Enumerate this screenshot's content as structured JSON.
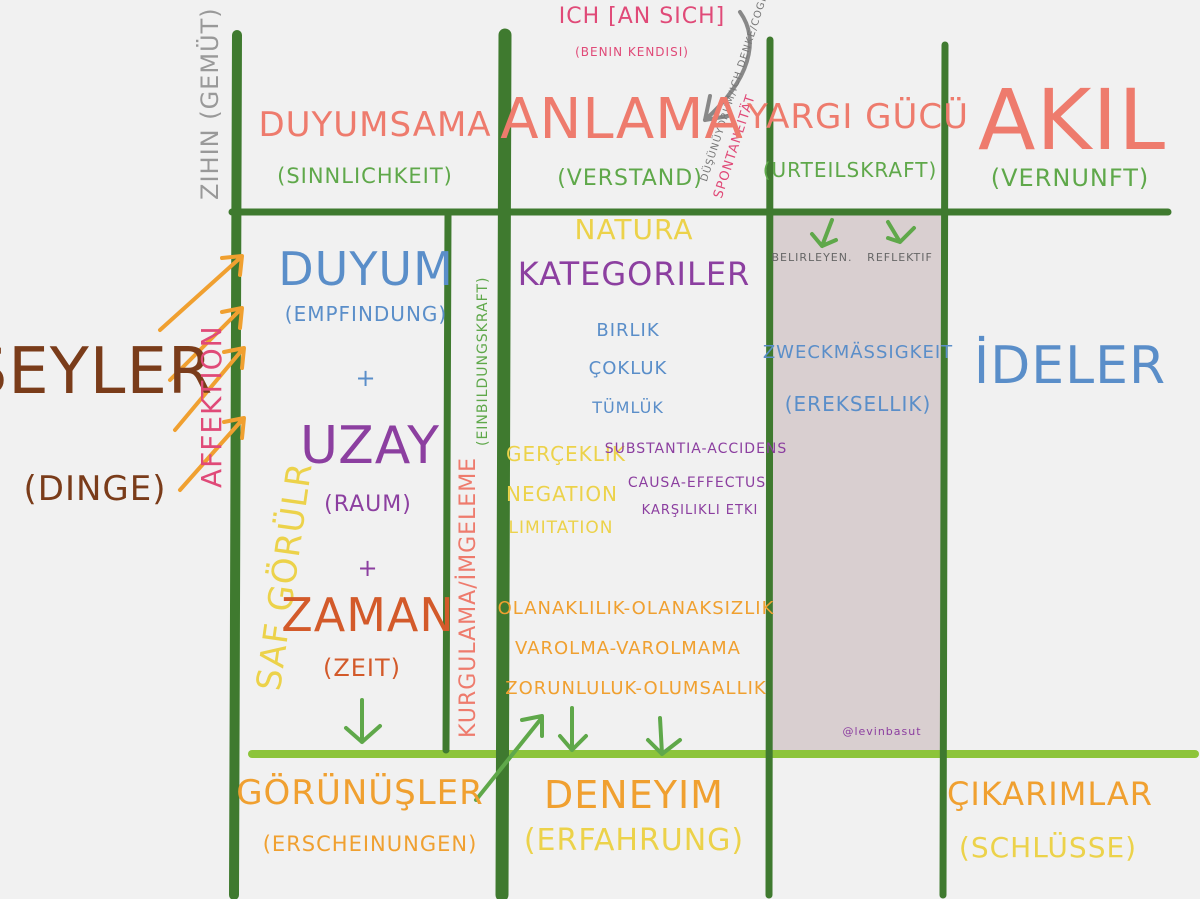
{
  "colors": {
    "dark_green": "#3f7a2f",
    "light_green": "#8cc43a",
    "salmon": "#ee7b6d",
    "green_text": "#5fa84a",
    "blue": "#5a8ec9",
    "purple": "#8c3fa0",
    "orange": "#f0a030",
    "yellow": "#ecd24a",
    "brown": "#7a3c1a",
    "pink": "#e04a78",
    "gray": "#777777",
    "shade": "#d9cfd0"
  },
  "top": {
    "ich": "ICH [AN SICH]",
    "benin_kendisi": "(Benin Kendisi)",
    "cogito_note": "Düşünüyorum/Ich denke/Cogito",
    "spontaneitat": "Spontaneität"
  },
  "faculties": {
    "duyumsama": "Duyumsama",
    "sinnlichkeit": "(Sinnlichkeit)",
    "anlama": "Anlama",
    "verstand": "(Verstand)",
    "yargi_gucu": "Yargı gücü",
    "urteilskraft": "(Urteilskraft)",
    "akil": "AKIL",
    "vernunft": "(Vernunft)"
  },
  "left": {
    "zihin": "Zihin (Gemüt)",
    "seyler": "ŞEYLER",
    "dinge": "(Dinge)",
    "affektion": "Affektion",
    "saf_gorular": "Saf Görülr"
  },
  "sense": {
    "duyum": "Duyum",
    "empfindung": "(Empfindung)",
    "plus1": "+",
    "uzay": "Uzay",
    "raum": "(Raum)",
    "plus2": "+",
    "zaman": "Zaman",
    "zeit": "(Zeit)"
  },
  "imagination": {
    "kurgulama": "Kurgulama/İmgeleme",
    "einbildungskraft": "(Einbildungskraft)"
  },
  "categories": {
    "natura": "Natura",
    "heading": "Kategoriler",
    "quantity": [
      "Birlik",
      "Çokluk",
      "Tümlük"
    ],
    "quality": [
      "Gerçeklik",
      "Negation",
      "Limitation"
    ],
    "relation": [
      "Substantia-accidens",
      "Causa-effectus",
      "Karşılıklı etki"
    ],
    "modality": [
      "Olanaklılık-olanaksızlık",
      "Varolma-varolmama",
      "Zorunluluk-olumsallık"
    ]
  },
  "judgment": {
    "belirleyen": "Belirleyen.",
    "reflektif": "reflektif",
    "zweck": "Zweckmäßigkeit",
    "ereksellik": "(Ereksellik)",
    "credit": "@levinbasut"
  },
  "reason": {
    "ideler": "İdeler"
  },
  "bottom": {
    "gorunusler": "Görünüşler",
    "erscheinungen": "(Erscheinungen)",
    "deneyim": "Deneyim",
    "erfahrung": "(Erfahrung)",
    "cikarimlar": "Çıkarımlar",
    "schlusse": "(Schlüsse)"
  }
}
